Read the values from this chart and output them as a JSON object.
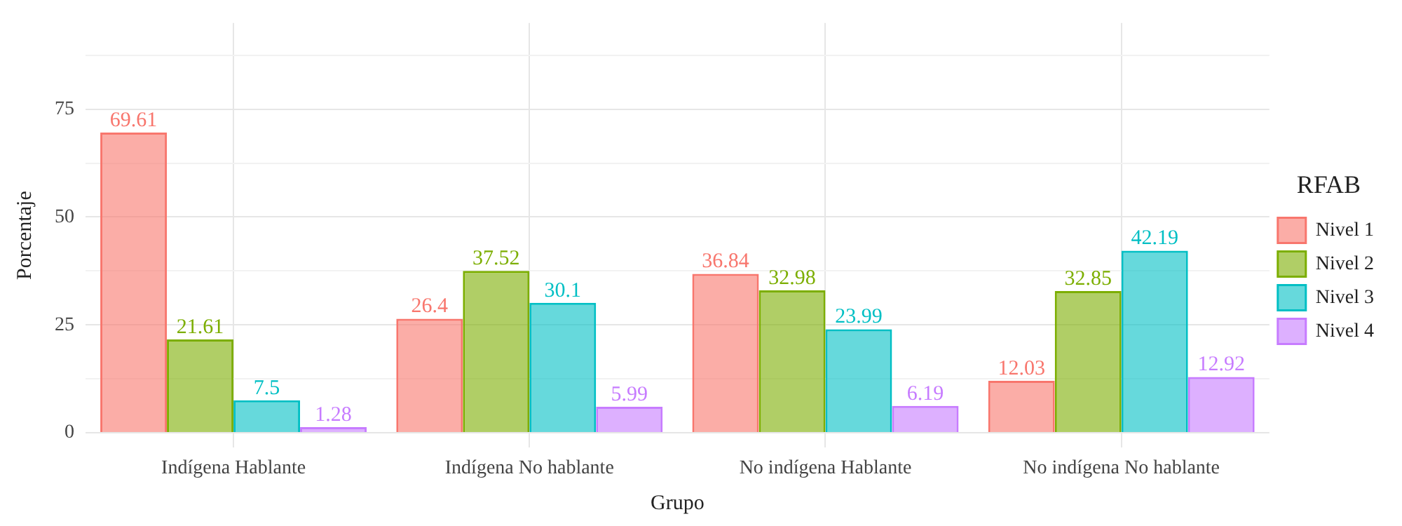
{
  "chart_data": {
    "type": "bar",
    "xlabel": "Grupo",
    "ylabel": "Porcentaje",
    "legend_title": "RFAB",
    "categories": [
      "Indígena Hablante",
      "Indígena No hablante",
      "No indígena Hablante",
      "No indígena No hablante"
    ],
    "series": [
      {
        "name": "Nivel 1",
        "color": "#f8766d",
        "values": [
          69.61,
          26.4,
          36.84,
          12.03
        ]
      },
      {
        "name": "Nivel 2",
        "color": "#7cae00",
        "values": [
          21.61,
          37.52,
          32.98,
          32.85
        ]
      },
      {
        "name": "Nivel 3",
        "color": "#00bfc4",
        "values": [
          7.5,
          30.1,
          23.99,
          42.19
        ]
      },
      {
        "name": "Nivel 4",
        "color": "#c77cff",
        "values": [
          1.28,
          5.99,
          6.19,
          12.92
        ]
      }
    ],
    "ylim": [
      -3.5,
      95
    ],
    "yticks": [
      0,
      {
        "value": 12.5,
        "label": null
      },
      25,
      {
        "value": 37.5,
        "label": null
      },
      50,
      {
        "value": 62.5,
        "label": null
      },
      75,
      {
        "value": 87.5,
        "label": null
      }
    ],
    "grid": true,
    "legend": "right",
    "data_labels": true
  }
}
